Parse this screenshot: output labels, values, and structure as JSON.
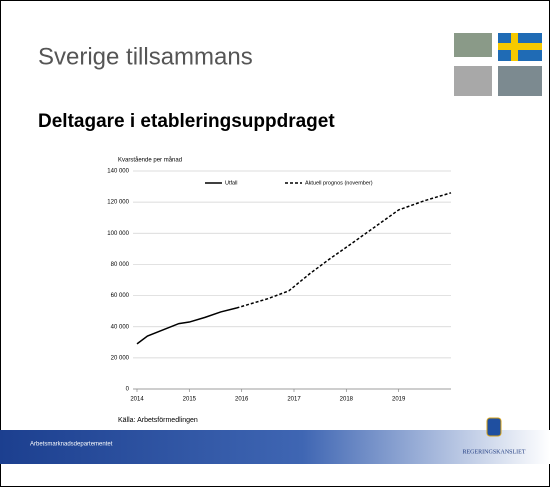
{
  "slide": {
    "title": "Sverige tillsammans",
    "heading": "Deltagare i etableringsuppdraget",
    "footer": "Arbetsmarknadsdepartementet",
    "logo": "REGERINGSKANSLIET"
  },
  "chart_data": {
    "type": "line",
    "y_label": "Kvarstående per månad",
    "source": "Källa: Arbetsförmedlingen",
    "xlim": [
      2014,
      2020
    ],
    "xticks": [
      2014,
      2015,
      2016,
      2017,
      2018,
      2019
    ],
    "ylim": [
      0,
      140000
    ],
    "yticks": [
      0,
      {
        "value": 20000,
        "label": "20 000"
      },
      {
        "value": 40000,
        "label": "40 000"
      },
      {
        "value": 60000,
        "label": "60 000"
      },
      {
        "value": 80000,
        "label": "80 000"
      },
      {
        "value": 100000,
        "label": "100 000"
      },
      {
        "value": 120000,
        "label": "120 000"
      },
      {
        "value": 140000,
        "label": "140 000"
      }
    ],
    "grid": true,
    "series": [
      {
        "name": "Utfall",
        "color": "#000000",
        "dash": false,
        "x": [
          2014.0,
          2014.2,
          2014.5,
          2014.8,
          2015.0,
          2015.3,
          2015.6,
          2015.9
        ],
        "values": [
          29000,
          34000,
          38000,
          42000,
          43000,
          46000,
          49500,
          52000
        ]
      },
      {
        "name": "Aktuell prognos (november)",
        "color": "#000000",
        "dash": true,
        "x": [
          2015.9,
          2016.2,
          2016.5,
          2016.9,
          2017.3,
          2017.7,
          2018.0,
          2018.5,
          2019.0,
          2019.5,
          2020.0
        ],
        "values": [
          52000,
          55000,
          58000,
          63000,
          74000,
          84000,
          91000,
          103000,
          115000,
          121000,
          126000
        ]
      }
    ]
  }
}
